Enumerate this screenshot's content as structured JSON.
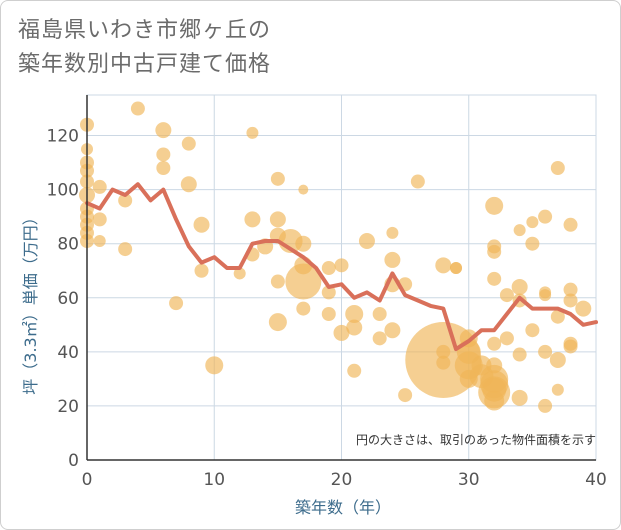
{
  "chart_data": {
    "type": "scatter",
    "title_line1": "福島県いわき市郷ヶ丘の",
    "title_line2": "築年数別中古戸建て価格",
    "xlabel": "築年数（年）",
    "ylabel": "坪（3.3㎡）単価（万円）",
    "annotation": "円の大きさは、取引のあった物件面積を示す",
    "xlim": [
      0,
      40
    ],
    "ylim": [
      0,
      135
    ],
    "xticks": [
      "0",
      "10",
      "20",
      "30",
      "40"
    ],
    "yticks": [
      "0",
      "20",
      "40",
      "60",
      "80",
      "100",
      "120"
    ],
    "xtick_values": [
      0,
      10,
      20,
      30,
      40
    ],
    "ytick_values": [
      0,
      20,
      40,
      60,
      80,
      100,
      120
    ],
    "colors": {
      "bubble": "#f0b657",
      "line": "#d9705a",
      "grid": "#ccd8e4",
      "axis": "#333333"
    },
    "series": [
      {
        "name": "average",
        "points": [
          [
            0,
            95
          ],
          [
            1,
            93
          ],
          [
            2,
            100
          ],
          [
            3,
            98
          ],
          [
            4,
            102
          ],
          [
            5,
            96
          ],
          [
            6,
            100
          ],
          [
            7,
            89
          ],
          [
            8,
            79
          ],
          [
            9,
            73
          ],
          [
            10,
            75
          ],
          [
            11,
            71
          ],
          [
            12,
            71
          ],
          [
            13,
            80
          ],
          [
            14,
            81
          ],
          [
            15,
            81
          ],
          [
            16,
            78
          ],
          [
            17,
            75
          ],
          [
            18,
            71
          ],
          [
            19,
            64
          ],
          [
            20,
            65
          ],
          [
            21,
            60
          ],
          [
            22,
            62
          ],
          [
            23,
            59
          ],
          [
            24,
            69
          ],
          [
            25,
            61
          ],
          [
            26,
            59
          ],
          [
            27,
            57
          ],
          [
            28,
            56
          ],
          [
            29,
            41
          ],
          [
            30,
            44
          ],
          [
            31,
            48
          ],
          [
            32,
            48
          ],
          [
            33,
            54
          ],
          [
            34,
            60
          ],
          [
            35,
            56
          ],
          [
            36,
            56
          ],
          [
            37,
            56
          ],
          [
            38,
            54
          ],
          [
            39,
            50
          ],
          [
            40,
            51
          ]
        ]
      }
    ],
    "bubbles": [
      [
        0,
        124,
        7
      ],
      [
        0,
        115,
        6
      ],
      [
        0,
        110,
        7
      ],
      [
        0,
        107,
        7
      ],
      [
        0,
        103,
        7
      ],
      [
        0,
        98,
        8
      ],
      [
        0,
        93,
        7
      ],
      [
        0,
        90,
        7
      ],
      [
        0,
        87,
        7
      ],
      [
        0,
        84,
        7
      ],
      [
        0,
        81,
        7
      ],
      [
        1,
        101,
        7
      ],
      [
        1,
        89,
        7
      ],
      [
        1,
        81,
        6
      ],
      [
        3,
        96,
        7
      ],
      [
        3,
        78,
        7
      ],
      [
        4,
        130,
        7
      ],
      [
        6,
        122,
        8
      ],
      [
        6,
        113,
        7
      ],
      [
        6,
        108,
        7
      ],
      [
        7,
        58,
        7
      ],
      [
        8,
        117,
        7
      ],
      [
        8,
        102,
        8
      ],
      [
        9,
        87,
        8
      ],
      [
        9,
        70,
        7
      ],
      [
        10,
        35,
        9
      ],
      [
        12,
        69,
        6
      ],
      [
        13,
        121,
        6
      ],
      [
        13,
        89,
        8
      ],
      [
        13,
        76,
        7
      ],
      [
        14,
        79,
        8
      ],
      [
        15,
        104,
        7
      ],
      [
        15,
        89,
        8
      ],
      [
        15,
        83,
        8
      ],
      [
        15,
        66,
        7
      ],
      [
        15,
        51,
        9
      ],
      [
        16,
        81,
        12
      ],
      [
        17,
        100,
        5
      ],
      [
        17,
        80,
        8
      ],
      [
        17,
        72,
        9
      ],
      [
        17,
        66,
        18
      ],
      [
        17,
        56,
        7
      ],
      [
        19,
        71,
        7
      ],
      [
        19,
        54,
        7
      ],
      [
        19,
        62,
        7
      ],
      [
        20,
        72,
        7
      ],
      [
        20,
        47,
        8
      ],
      [
        21,
        54,
        9
      ],
      [
        21,
        49,
        8
      ],
      [
        21,
        33,
        7
      ],
      [
        22,
        81,
        8
      ],
      [
        23,
        54,
        7
      ],
      [
        23,
        45,
        7
      ],
      [
        24,
        84,
        6
      ],
      [
        24,
        74,
        8
      ],
      [
        24,
        65,
        8
      ],
      [
        24,
        48,
        8
      ],
      [
        25,
        65,
        7
      ],
      [
        25,
        24,
        7
      ],
      [
        26,
        103,
        7
      ],
      [
        28,
        72,
        8
      ],
      [
        28,
        40,
        7
      ],
      [
        28,
        36,
        7
      ],
      [
        28,
        37,
        38
      ],
      [
        29,
        71,
        6
      ],
      [
        29,
        71,
        6
      ],
      [
        30,
        45,
        9
      ],
      [
        30,
        40,
        12
      ],
      [
        30,
        30,
        9
      ],
      [
        30,
        35,
        14
      ],
      [
        31,
        35,
        10
      ],
      [
        31,
        31,
        12
      ],
      [
        32,
        94,
        9
      ],
      [
        32,
        79,
        7
      ],
      [
        32,
        77,
        7
      ],
      [
        32,
        67,
        7
      ],
      [
        32,
        43,
        7
      ],
      [
        32,
        35,
        8
      ],
      [
        32,
        30,
        14
      ],
      [
        32,
        28,
        14
      ],
      [
        32,
        25,
        16
      ],
      [
        32,
        26,
        12
      ],
      [
        32,
        22,
        10
      ],
      [
        33,
        61,
        7
      ],
      [
        33,
        45,
        7
      ],
      [
        34,
        85,
        6
      ],
      [
        34,
        64,
        8
      ],
      [
        34,
        59,
        7
      ],
      [
        34,
        39,
        7
      ],
      [
        34,
        23,
        8
      ],
      [
        35,
        88,
        6
      ],
      [
        35,
        80,
        7
      ],
      [
        35,
        48,
        7
      ],
      [
        36,
        90,
        7
      ],
      [
        36,
        62,
        6
      ],
      [
        36,
        61,
        6
      ],
      [
        36,
        40,
        7
      ],
      [
        36,
        20,
        7
      ],
      [
        37,
        108,
        7
      ],
      [
        37,
        53,
        7
      ],
      [
        37,
        37,
        8
      ],
      [
        37,
        26,
        6
      ],
      [
        38,
        87,
        7
      ],
      [
        38,
        63,
        7
      ],
      [
        38,
        59,
        7
      ],
      [
        38,
        43,
        7
      ],
      [
        38,
        42,
        7
      ],
      [
        39,
        56,
        8
      ]
    ]
  }
}
